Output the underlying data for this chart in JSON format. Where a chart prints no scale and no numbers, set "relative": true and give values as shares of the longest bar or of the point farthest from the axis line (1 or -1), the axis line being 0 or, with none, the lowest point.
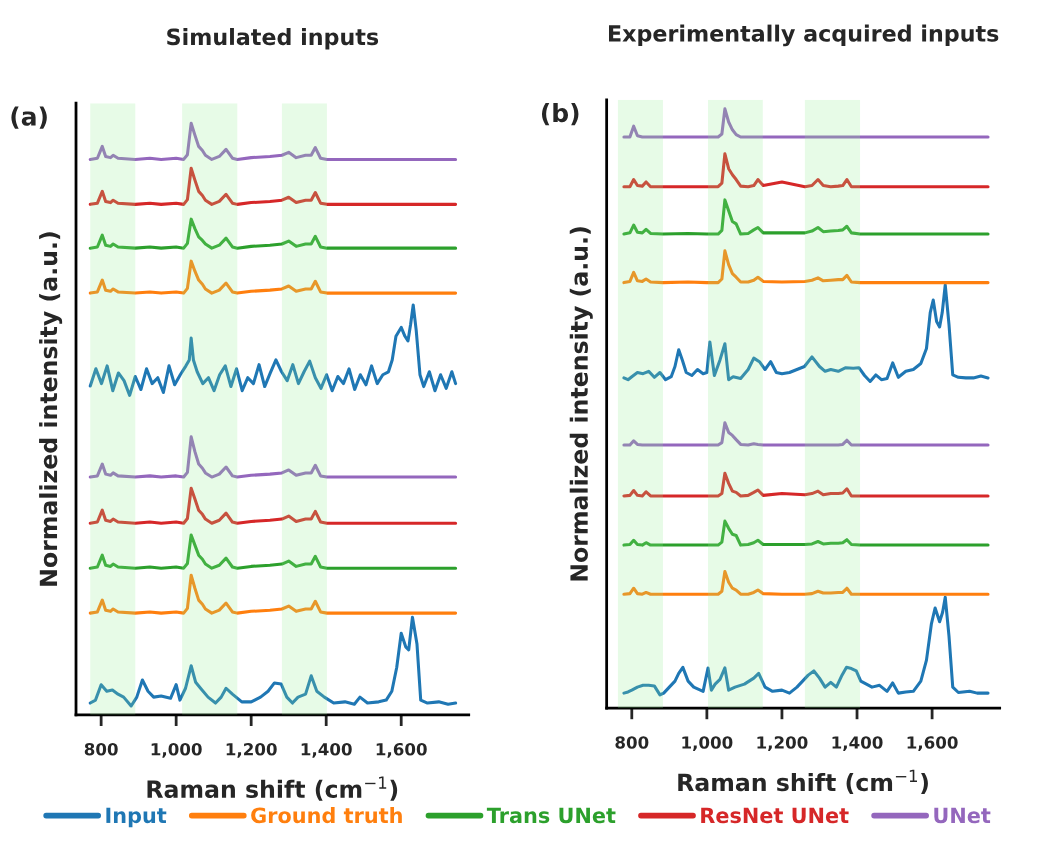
{
  "chart_data": [
    {
      "type": "line",
      "title": "Simulated inputs",
      "xlabel": "Raman shift (cm$^{−1}$)",
      "ylabel": "Normalized intensity (a.u.)",
      "relative": true,
      "xlim": [
        733,
        1780
      ],
      "xticks": [
        800,
        {
          "value": 1000,
          "label": "1,000"
        },
        {
          "value": 1200,
          "label": "1,200"
        },
        {
          "value": 1400,
          "label": "1,400"
        },
        {
          "value": 1600,
          "label": "1,600"
        }
      ],
      "tick_labels": "x",
      "legend": "bottom",
      "annotations": [
        "(a)"
      ],
      "bands": [
        {
          "axis": "x",
          "from": 771,
          "to": 891,
          "color": "#90ee90"
        },
        {
          "axis": "x",
          "from": 1016,
          "to": 1163,
          "color": "#90ee90"
        },
        {
          "axis": "x",
          "from": 1282,
          "to": 1402,
          "color": "#90ee90"
        }
      ],
      "series": [
        {
          "name": "Input",
          "color": "#1f77b4",
          "x": [
            771,
            786,
            801,
            816,
            831,
            846,
            861,
            876,
            891,
            906,
            921,
            936,
            951,
            966,
            981,
            996,
            1011,
            1026,
            1035,
            1040,
            1046,
            1056,
            1071,
            1086,
            1101,
            1116,
            1131,
            1146,
            1161,
            1176,
            1191,
            1206,
            1221,
            1236,
            1251,
            1266,
            1281,
            1296,
            1311,
            1326,
            1341,
            1356,
            1371,
            1386,
            1401,
            1416,
            1431,
            1446,
            1461,
            1476,
            1491,
            1506,
            1521,
            1536,
            1551,
            1566,
            1576,
            1586,
            1600,
            1610,
            1618,
            1625,
            1632,
            1640,
            1650,
            1660,
            1675,
            1690,
            1705,
            1720,
            1735,
            1745
          ],
          "values": [
            0.556,
            0.585,
            0.56,
            0.59,
            0.548,
            0.578,
            0.565,
            0.54,
            0.572,
            0.55,
            0.585,
            0.56,
            0.57,
            0.545,
            0.59,
            0.558,
            0.575,
            0.59,
            0.6,
            0.637,
            0.6,
            0.58,
            0.56,
            0.57,
            0.548,
            0.575,
            0.59,
            0.555,
            0.585,
            0.548,
            0.57,
            0.56,
            0.592,
            0.555,
            0.578,
            0.6,
            0.58,
            0.565,
            0.592,
            0.56,
            0.58,
            0.598,
            0.57,
            0.552,
            0.575,
            0.548,
            0.572,
            0.56,
            0.585,
            0.55,
            0.575,
            0.558,
            0.59,
            0.56,
            0.575,
            0.58,
            0.6,
            0.64,
            0.655,
            0.64,
            0.632,
            0.66,
            0.693,
            0.65,
            0.575,
            0.555,
            0.58,
            0.548,
            0.575,
            0.552,
            0.58,
            0.56
          ]
        },
        {
          "name": "Ground truth",
          "color": "#ff7f0e",
          "x": [
            771,
            790,
            803,
            812,
            825,
            832,
            845,
            891,
            930,
            960,
            1000,
            1020,
            1030,
            1040,
            1050,
            1060,
            1070,
            1078,
            1095,
            1115,
            1133,
            1150,
            1163,
            1200,
            1250,
            1282,
            1300,
            1320,
            1345,
            1360,
            1371,
            1385,
            1402,
            1500,
            1600,
            1700,
            1745
          ],
          "values": [
            0.713,
            0.715,
            0.735,
            0.718,
            0.716,
            0.72,
            0.715,
            0.713,
            0.715,
            0.713,
            0.715,
            0.713,
            0.721,
            0.767,
            0.75,
            0.735,
            0.728,
            0.72,
            0.713,
            0.718,
            0.73,
            0.715,
            0.713,
            0.716,
            0.718,
            0.72,
            0.725,
            0.716,
            0.72,
            0.72,
            0.733,
            0.715,
            0.713,
            0.713,
            0.713,
            0.713,
            0.713
          ]
        },
        {
          "name": "Trans UNet",
          "color": "#2ca02c",
          "x": [
            771,
            790,
            803,
            812,
            825,
            832,
            845,
            891,
            930,
            960,
            1000,
            1020,
            1030,
            1040,
            1050,
            1060,
            1070,
            1078,
            1095,
            1115,
            1133,
            1150,
            1163,
            1200,
            1250,
            1282,
            1300,
            1320,
            1345,
            1360,
            1371,
            1385,
            1402,
            1500,
            1600,
            1700,
            1745
          ],
          "values": [
            0.789,
            0.791,
            0.811,
            0.794,
            0.792,
            0.796,
            0.791,
            0.789,
            0.791,
            0.789,
            0.791,
            0.789,
            0.797,
            0.838,
            0.822,
            0.808,
            0.802,
            0.796,
            0.789,
            0.794,
            0.806,
            0.791,
            0.789,
            0.792,
            0.794,
            0.796,
            0.801,
            0.792,
            0.796,
            0.796,
            0.809,
            0.791,
            0.789,
            0.789,
            0.789,
            0.789,
            0.789
          ]
        },
        {
          "name": "ResNet UNet",
          "color": "#d62728",
          "x": [
            771,
            790,
            803,
            812,
            825,
            832,
            845,
            891,
            930,
            960,
            1000,
            1020,
            1030,
            1040,
            1050,
            1060,
            1070,
            1078,
            1095,
            1115,
            1133,
            1150,
            1163,
            1200,
            1250,
            1282,
            1300,
            1320,
            1345,
            1360,
            1371,
            1385,
            1402,
            1500,
            1600,
            1700,
            1745
          ],
          "values": [
            0.863,
            0.865,
            0.885,
            0.868,
            0.866,
            0.87,
            0.865,
            0.863,
            0.865,
            0.863,
            0.865,
            0.863,
            0.871,
            0.924,
            0.904,
            0.885,
            0.878,
            0.87,
            0.863,
            0.868,
            0.88,
            0.865,
            0.863,
            0.866,
            0.868,
            0.87,
            0.875,
            0.866,
            0.87,
            0.87,
            0.883,
            0.865,
            0.863,
            0.863,
            0.863,
            0.863,
            0.863
          ]
        },
        {
          "name": "UNet",
          "color": "#9467bd",
          "x": [
            771,
            790,
            803,
            812,
            825,
            832,
            845,
            891,
            930,
            960,
            1000,
            1020,
            1030,
            1040,
            1050,
            1060,
            1070,
            1078,
            1095,
            1115,
            1133,
            1150,
            1163,
            1200,
            1250,
            1282,
            1300,
            1320,
            1345,
            1360,
            1371,
            1385,
            1402,
            1500,
            1600,
            1700,
            1745
          ],
          "values": [
            0.939,
            0.941,
            0.961,
            0.944,
            0.942,
            0.946,
            0.941,
            0.939,
            0.941,
            0.939,
            0.941,
            0.939,
            0.947,
            1.0,
            0.98,
            0.961,
            0.954,
            0.946,
            0.939,
            0.944,
            0.956,
            0.941,
            0.939,
            0.942,
            0.944,
            0.946,
            0.951,
            0.942,
            0.946,
            0.946,
            0.959,
            0.941,
            0.939,
            0.939,
            0.939,
            0.939,
            0.939
          ]
        },
        {
          "color": "#1f77b4",
          "x": [
            771,
            785,
            800,
            815,
            830,
            845,
            860,
            880,
            895,
            910,
            925,
            940,
            960,
            985,
            1000,
            1010,
            1025,
            1040,
            1052,
            1065,
            1085,
            1105,
            1120,
            1133,
            1150,
            1175,
            1200,
            1225,
            1245,
            1262,
            1280,
            1295,
            1310,
            1325,
            1345,
            1360,
            1375,
            1395,
            1420,
            1450,
            1475,
            1490,
            1510,
            1540,
            1560,
            1575,
            1588,
            1600,
            1612,
            1620,
            1630,
            1642,
            1652,
            1670,
            1700,
            1725,
            1745
          ],
          "values": [
            0.02,
            0.025,
            0.051,
            0.04,
            0.042,
            0.035,
            0.03,
            0.015,
            0.03,
            0.059,
            0.04,
            0.03,
            0.032,
            0.028,
            0.051,
            0.025,
            0.045,
            0.083,
            0.055,
            0.045,
            0.03,
            0.02,
            0.03,
            0.045,
            0.035,
            0.022,
            0.022,
            0.03,
            0.04,
            0.054,
            0.052,
            0.03,
            0.02,
            0.03,
            0.035,
            0.066,
            0.04,
            0.03,
            0.02,
            0.022,
            0.018,
            0.03,
            0.02,
            0.022,
            0.025,
            0.04,
            0.08,
            0.138,
            0.115,
            0.11,
            0.165,
            0.12,
            0.025,
            0.02,
            0.022,
            0.018,
            0.02
          ]
        },
        {
          "color": "#ff7f0e",
          "x": [
            771,
            790,
            803,
            812,
            825,
            832,
            845,
            891,
            930,
            960,
            1000,
            1020,
            1030,
            1040,
            1050,
            1060,
            1070,
            1078,
            1095,
            1115,
            1133,
            1150,
            1163,
            1200,
            1250,
            1282,
            1300,
            1320,
            1345,
            1360,
            1371,
            1385,
            1402,
            1500,
            1600,
            1700,
            1745
          ],
          "values": [
            0.172,
            0.174,
            0.194,
            0.177,
            0.175,
            0.179,
            0.174,
            0.172,
            0.174,
            0.172,
            0.174,
            0.172,
            0.18,
            0.236,
            0.214,
            0.194,
            0.187,
            0.179,
            0.172,
            0.177,
            0.189,
            0.174,
            0.172,
            0.175,
            0.177,
            0.179,
            0.184,
            0.175,
            0.179,
            0.179,
            0.192,
            0.174,
            0.172,
            0.172,
            0.172,
            0.172,
            0.172
          ]
        },
        {
          "color": "#2ca02c",
          "x": [
            771,
            790,
            803,
            812,
            825,
            832,
            845,
            891,
            930,
            960,
            1000,
            1020,
            1030,
            1040,
            1050,
            1060,
            1070,
            1078,
            1095,
            1115,
            1133,
            1150,
            1163,
            1200,
            1250,
            1282,
            1300,
            1320,
            1345,
            1360,
            1371,
            1385,
            1402,
            1500,
            1600,
            1700,
            1745
          ],
          "values": [
            0.248,
            0.25,
            0.27,
            0.253,
            0.251,
            0.255,
            0.25,
            0.248,
            0.25,
            0.248,
            0.25,
            0.248,
            0.256,
            0.304,
            0.287,
            0.27,
            0.263,
            0.255,
            0.248,
            0.253,
            0.265,
            0.25,
            0.248,
            0.251,
            0.253,
            0.255,
            0.26,
            0.251,
            0.255,
            0.255,
            0.268,
            0.25,
            0.248,
            0.248,
            0.248,
            0.248,
            0.248
          ]
        },
        {
          "color": "#d62728",
          "x": [
            771,
            790,
            803,
            812,
            825,
            832,
            845,
            891,
            930,
            960,
            1000,
            1020,
            1030,
            1040,
            1050,
            1060,
            1070,
            1078,
            1095,
            1115,
            1133,
            1150,
            1163,
            1200,
            1250,
            1282,
            1300,
            1320,
            1345,
            1360,
            1371,
            1385,
            1402,
            1500,
            1600,
            1700,
            1745
          ],
          "values": [
            0.324,
            0.326,
            0.346,
            0.329,
            0.327,
            0.331,
            0.326,
            0.324,
            0.326,
            0.324,
            0.326,
            0.324,
            0.332,
            0.383,
            0.365,
            0.346,
            0.339,
            0.331,
            0.324,
            0.329,
            0.341,
            0.326,
            0.324,
            0.327,
            0.329,
            0.331,
            0.336,
            0.327,
            0.331,
            0.331,
            0.344,
            0.326,
            0.324,
            0.324,
            0.324,
            0.324,
            0.324
          ]
        },
        {
          "color": "#9467bd",
          "x": [
            771,
            790,
            803,
            812,
            825,
            832,
            845,
            891,
            930,
            960,
            1000,
            1020,
            1030,
            1040,
            1050,
            1060,
            1070,
            1078,
            1095,
            1115,
            1133,
            1150,
            1163,
            1200,
            1250,
            1282,
            1300,
            1320,
            1345,
            1360,
            1371,
            1385,
            1402,
            1500,
            1600,
            1700,
            1745
          ],
          "values": [
            0.402,
            0.404,
            0.424,
            0.407,
            0.405,
            0.409,
            0.404,
            0.402,
            0.404,
            0.402,
            0.404,
            0.402,
            0.41,
            0.47,
            0.445,
            0.424,
            0.417,
            0.409,
            0.402,
            0.407,
            0.419,
            0.404,
            0.402,
            0.405,
            0.407,
            0.409,
            0.414,
            0.405,
            0.409,
            0.409,
            0.422,
            0.404,
            0.402,
            0.402,
            0.402,
            0.402,
            0.402
          ]
        }
      ]
    },
    {
      "type": "line",
      "title": "Experimentally acquired inputs",
      "xlabel": "Raman shift (cm$^{−1}$)",
      "ylabel": "Normalized intensity (a.u.)",
      "relative": true,
      "xlim": [
        733,
        1780
      ],
      "xticks": [
        800,
        {
          "value": 1000,
          "label": "1,000"
        },
        {
          "value": 1200,
          "label": "1,200"
        },
        {
          "value": 1400,
          "label": "1,400"
        },
        {
          "value": 1600,
          "label": "1,600"
        }
      ],
      "tick_labels": "x",
      "annotations": [
        "(b)"
      ],
      "bands": [
        {
          "axis": "x",
          "from": 763,
          "to": 883,
          "color": "#90ee90"
        },
        {
          "axis": "x",
          "from": 1003,
          "to": 1149,
          "color": "#90ee90"
        },
        {
          "axis": "x",
          "from": 1261,
          "to": 1408,
          "color": "#90ee90"
        }
      ],
      "series": [
        {
          "color": "#1f77b4",
          "x": [
            779,
            790,
            800,
            815,
            830,
            845,
            860,
            875,
            890,
            905,
            915,
            925,
            935,
            945,
            960,
            975,
            990,
            1000,
            1008,
            1020,
            1035,
            1048,
            1058,
            1070,
            1090,
            1110,
            1125,
            1140,
            1155,
            1170,
            1185,
            1200,
            1220,
            1240,
            1260,
            1280,
            1300,
            1315,
            1330,
            1350,
            1370,
            1390,
            1405,
            1420,
            1435,
            1450,
            1465,
            1480,
            1495,
            1510,
            1530,
            1550,
            1570,
            1585,
            1595,
            1603,
            1612,
            1620,
            1627,
            1635,
            1645,
            1655,
            1670,
            1690,
            1710,
            1730,
            1749
          ],
          "values": [
            0.551,
            0.548,
            0.553,
            0.56,
            0.558,
            0.562,
            0.552,
            0.56,
            0.548,
            0.553,
            0.57,
            0.598,
            0.58,
            0.56,
            0.555,
            0.565,
            0.558,
            0.56,
            0.611,
            0.555,
            0.581,
            0.608,
            0.548,
            0.553,
            0.55,
            0.565,
            0.584,
            0.578,
            0.565,
            0.578,
            0.56,
            0.558,
            0.56,
            0.565,
            0.57,
            0.586,
            0.57,
            0.562,
            0.565,
            0.562,
            0.568,
            0.567,
            0.568,
            0.555,
            0.545,
            0.556,
            0.548,
            0.55,
            0.576,
            0.552,
            0.562,
            0.565,
            0.575,
            0.6,
            0.66,
            0.681,
            0.645,
            0.636,
            0.66,
            0.706,
            0.64,
            0.556,
            0.552,
            0.551,
            0.551,
            0.554,
            0.551
          ]
        },
        {
          "color": "#ff7f0e",
          "x": [
            779,
            795,
            805,
            815,
            828,
            838,
            850,
            883,
            950,
            1000,
            1030,
            1040,
            1048,
            1058,
            1068,
            1078,
            1090,
            1110,
            1125,
            1136,
            1150,
            1200,
            1261,
            1280,
            1296,
            1310,
            1330,
            1350,
            1362,
            1373,
            1385,
            1408,
            1500,
            1600,
            1700,
            1749
          ],
          "values": [
            0.71,
            0.712,
            0.727,
            0.713,
            0.712,
            0.716,
            0.711,
            0.71,
            0.711,
            0.71,
            0.71,
            0.716,
            0.763,
            0.74,
            0.725,
            0.719,
            0.711,
            0.711,
            0.714,
            0.719,
            0.712,
            0.711,
            0.712,
            0.714,
            0.718,
            0.713,
            0.714,
            0.715,
            0.715,
            0.722,
            0.711,
            0.71,
            0.71,
            0.71,
            0.71,
            0.71
          ]
        },
        {
          "color": "#2ca02c",
          "x": [
            779,
            795,
            805,
            815,
            828,
            838,
            850,
            883,
            950,
            1000,
            1030,
            1040,
            1048,
            1058,
            1068,
            1078,
            1090,
            1110,
            1125,
            1136,
            1150,
            1200,
            1261,
            1280,
            1296,
            1310,
            1330,
            1350,
            1362,
            1373,
            1385,
            1408,
            1500,
            1600,
            1700,
            1749
          ],
          "values": [
            0.791,
            0.793,
            0.806,
            0.794,
            0.793,
            0.799,
            0.792,
            0.791,
            0.792,
            0.791,
            0.791,
            0.797,
            0.848,
            0.83,
            0.812,
            0.808,
            0.791,
            0.792,
            0.798,
            0.802,
            0.793,
            0.793,
            0.793,
            0.796,
            0.802,
            0.795,
            0.796,
            0.797,
            0.798,
            0.804,
            0.793,
            0.791,
            0.791,
            0.791,
            0.791,
            0.791
          ]
        },
        {
          "color": "#d62728",
          "x": [
            779,
            795,
            805,
            815,
            828,
            838,
            850,
            883,
            950,
            1000,
            1030,
            1040,
            1048,
            1058,
            1068,
            1078,
            1090,
            1110,
            1125,
            1136,
            1150,
            1200,
            1261,
            1280,
            1296,
            1310,
            1330,
            1350,
            1362,
            1373,
            1385,
            1408,
            1500,
            1600,
            1700,
            1749
          ],
          "values": [
            0.87,
            0.87,
            0.882,
            0.872,
            0.871,
            0.878,
            0.87,
            0.87,
            0.87,
            0.87,
            0.87,
            0.876,
            0.925,
            0.9,
            0.89,
            0.882,
            0.871,
            0.87,
            0.872,
            0.882,
            0.872,
            0.878,
            0.87,
            0.872,
            0.882,
            0.872,
            0.87,
            0.871,
            0.872,
            0.882,
            0.87,
            0.87,
            0.87,
            0.87,
            0.87,
            0.87
          ]
        },
        {
          "color": "#9467bd",
          "x": [
            779,
            795,
            805,
            815,
            828,
            838,
            850,
            883,
            950,
            1000,
            1030,
            1040,
            1048,
            1058,
            1068,
            1078,
            1090,
            1110,
            1125,
            1136,
            1150,
            1200,
            1261,
            1280,
            1296,
            1310,
            1330,
            1350,
            1362,
            1373,
            1385,
            1408,
            1500,
            1600,
            1700,
            1749
          ],
          "values": [
            0.953,
            0.953,
            0.971,
            0.955,
            0.953,
            0.953,
            0.953,
            0.953,
            0.953,
            0.953,
            0.953,
            0.958,
            1.0,
            0.978,
            0.965,
            0.957,
            0.953,
            0.953,
            0.953,
            0.953,
            0.953,
            0.953,
            0.953,
            0.953,
            0.953,
            0.953,
            0.953,
            0.953,
            0.953,
            0.953,
            0.953,
            0.953,
            0.953,
            0.953,
            0.953,
            0.953
          ]
        },
        {
          "color": "#1f77b4",
          "x": [
            779,
            790,
            800,
            815,
            830,
            845,
            860,
            875,
            885,
            900,
            915,
            925,
            936,
            950,
            965,
            990,
            1003,
            1012,
            1022,
            1035,
            1048,
            1058,
            1075,
            1100,
            1125,
            1138,
            1155,
            1175,
            1200,
            1220,
            1240,
            1255,
            1270,
            1285,
            1300,
            1315,
            1330,
            1345,
            1360,
            1372,
            1385,
            1398,
            1410,
            1425,
            1440,
            1460,
            1480,
            1495,
            1510,
            1530,
            1550,
            1570,
            1585,
            1598,
            1608,
            1620,
            1628,
            1635,
            1645,
            1655,
            1670,
            1700,
            1720,
            1749
          ],
          "values": [
            0.025,
            0.027,
            0.03,
            0.035,
            0.038,
            0.038,
            0.037,
            0.022,
            0.025,
            0.035,
            0.045,
            0.058,
            0.068,
            0.045,
            0.035,
            0.028,
            0.067,
            0.03,
            0.04,
            0.048,
            0.067,
            0.03,
            0.035,
            0.04,
            0.05,
            0.058,
            0.035,
            0.028,
            0.03,
            0.025,
            0.035,
            0.045,
            0.055,
            0.062,
            0.05,
            0.035,
            0.043,
            0.035,
            0.055,
            0.068,
            0.066,
            0.062,
            0.045,
            0.04,
            0.035,
            0.038,
            0.028,
            0.042,
            0.025,
            0.027,
            0.028,
            0.045,
            0.08,
            0.14,
            0.167,
            0.144,
            0.16,
            0.185,
            0.12,
            0.035,
            0.026,
            0.028,
            0.025,
            0.025
          ]
        },
        {
          "color": "#ff7f0e",
          "x": [
            779,
            795,
            805,
            815,
            828,
            838,
            850,
            883,
            950,
            1000,
            1030,
            1040,
            1048,
            1058,
            1068,
            1078,
            1090,
            1110,
            1125,
            1136,
            1150,
            1200,
            1261,
            1280,
            1296,
            1310,
            1330,
            1350,
            1362,
            1373,
            1385,
            1408,
            1500,
            1600,
            1700,
            1749
          ],
          "values": [
            0.19,
            0.191,
            0.2,
            0.191,
            0.19,
            0.193,
            0.19,
            0.19,
            0.19,
            0.19,
            0.19,
            0.195,
            0.228,
            0.21,
            0.2,
            0.197,
            0.19,
            0.19,
            0.193,
            0.197,
            0.191,
            0.19,
            0.19,
            0.191,
            0.195,
            0.192,
            0.192,
            0.193,
            0.193,
            0.2,
            0.19,
            0.19,
            0.19,
            0.19,
            0.19,
            0.19
          ]
        },
        {
          "color": "#2ca02c",
          "x": [
            779,
            795,
            805,
            815,
            828,
            838,
            850,
            883,
            950,
            1000,
            1030,
            1040,
            1048,
            1058,
            1068,
            1078,
            1090,
            1110,
            1125,
            1136,
            1150,
            1200,
            1261,
            1280,
            1296,
            1310,
            1330,
            1350,
            1362,
            1373,
            1385,
            1408,
            1500,
            1600,
            1700,
            1749
          ],
          "values": [
            0.272,
            0.273,
            0.28,
            0.273,
            0.272,
            0.276,
            0.272,
            0.272,
            0.272,
            0.272,
            0.272,
            0.277,
            0.312,
            0.3,
            0.29,
            0.288,
            0.272,
            0.273,
            0.276,
            0.28,
            0.273,
            0.273,
            0.273,
            0.274,
            0.278,
            0.274,
            0.275,
            0.275,
            0.276,
            0.281,
            0.273,
            0.272,
            0.272,
            0.272,
            0.272,
            0.272
          ]
        },
        {
          "color": "#d62728",
          "x": [
            779,
            795,
            805,
            815,
            828,
            838,
            850,
            883,
            950,
            1000,
            1030,
            1040,
            1048,
            1058,
            1068,
            1078,
            1090,
            1110,
            1125,
            1136,
            1150,
            1200,
            1261,
            1280,
            1296,
            1310,
            1330,
            1350,
            1362,
            1373,
            1385,
            1408,
            1500,
            1600,
            1700,
            1749
          ],
          "values": [
            0.354,
            0.355,
            0.363,
            0.355,
            0.354,
            0.361,
            0.354,
            0.354,
            0.354,
            0.354,
            0.354,
            0.358,
            0.392,
            0.375,
            0.362,
            0.36,
            0.354,
            0.355,
            0.36,
            0.364,
            0.355,
            0.358,
            0.356,
            0.358,
            0.362,
            0.356,
            0.358,
            0.358,
            0.359,
            0.366,
            0.354,
            0.354,
            0.354,
            0.354,
            0.354,
            0.354
          ]
        },
        {
          "color": "#9467bd",
          "x": [
            779,
            795,
            805,
            815,
            828,
            838,
            850,
            883,
            950,
            1000,
            1030,
            1040,
            1048,
            1058,
            1068,
            1078,
            1090,
            1110,
            1125,
            1136,
            1150,
            1200,
            1261,
            1280,
            1296,
            1310,
            1330,
            1350,
            1362,
            1373,
            1385,
            1408,
            1500,
            1600,
            1700,
            1749
          ],
          "values": [
            0.439,
            0.439,
            0.446,
            0.44,
            0.439,
            0.439,
            0.439,
            0.439,
            0.439,
            0.439,
            0.439,
            0.443,
            0.476,
            0.46,
            0.455,
            0.448,
            0.44,
            0.439,
            0.441,
            0.44,
            0.439,
            0.439,
            0.439,
            0.439,
            0.439,
            0.439,
            0.439,
            0.439,
            0.44,
            0.447,
            0.439,
            0.439,
            0.439,
            0.439,
            0.439,
            0.439
          ]
        }
      ]
    }
  ]
}
